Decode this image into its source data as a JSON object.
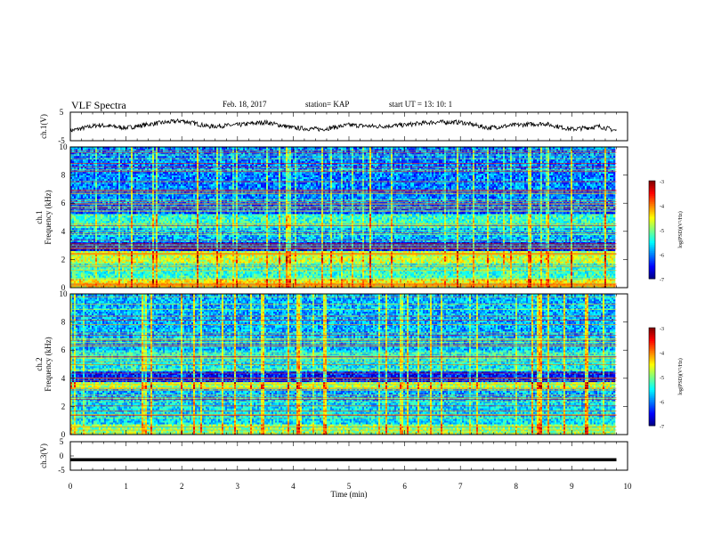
{
  "header": {
    "title": "VLF Spectra",
    "date": "Feb. 18, 2017",
    "station": "station= KAP",
    "start": "start  UT =   13: 10: 1"
  },
  "chart_data": [
    {
      "type": "line",
      "panel": "ch1-waveform",
      "ylabel": "ch.1(V)",
      "ylim": [
        -5,
        5
      ],
      "yticks": [
        5,
        -5
      ],
      "xlim": [
        0,
        10
      ],
      "series": [
        {
          "x": [
            0,
            0.5,
            1,
            1.5,
            2,
            2.5,
            3,
            3.5,
            4,
            4.5,
            5,
            5.5,
            6,
            6.5,
            7,
            7.5,
            8,
            8.5,
            9,
            9.5,
            9.8
          ],
          "values": [
            -1.5,
            0.5,
            -0.5,
            1,
            2,
            0,
            0.5,
            1.5,
            -0.5,
            -1,
            0.5,
            0,
            0.5,
            1.5,
            1.5,
            -0.5,
            0.5,
            1,
            -1,
            0,
            -1.5
          ]
        }
      ]
    },
    {
      "type": "heatmap",
      "panel": "ch1-spectrogram",
      "ylabel": "ch.1\nFrequency (kHz)",
      "ylim": [
        0,
        10
      ],
      "yticks": [
        0,
        2,
        4,
        6,
        8,
        10
      ],
      "xlim": [
        0,
        10
      ],
      "colorbar": {
        "label": "log(PSD)(V²/Hz)",
        "range": [
          -7,
          -3
        ],
        "ticks": [
          -3,
          -4,
          -5,
          -6,
          -7
        ]
      },
      "bands_khz": [
        {
          "range": [
            0,
            0.6
          ],
          "level": -4.5
        },
        {
          "range": [
            0.6,
            1.8
          ],
          "level": -5.3
        },
        {
          "range": [
            1.8,
            2.6
          ],
          "level": -4.7
        },
        {
          "range": [
            2.6,
            3.2
          ],
          "level": -6.5
        },
        {
          "range": [
            3.2,
            4.2
          ],
          "level": -5.8
        },
        {
          "range": [
            4.2,
            5.3
          ],
          "level": -5.3
        },
        {
          "range": [
            5.3,
            6.0
          ],
          "level": -6.2
        },
        {
          "range": [
            6.0,
            10
          ],
          "level": -6.0
        }
      ]
    },
    {
      "type": "heatmap",
      "panel": "ch2-spectrogram",
      "ylabel": "ch.2\nFrequency (kHz)",
      "ylim": [
        0,
        10
      ],
      "yticks": [
        0,
        2,
        4,
        6,
        8,
        10
      ],
      "xlim": [
        0,
        10
      ],
      "colorbar": {
        "label": "log(PSD)(V²/Hz)",
        "range": [
          -7,
          -3
        ],
        "ticks": [
          -3,
          -4,
          -5,
          -6,
          -7
        ]
      },
      "bands_khz": [
        {
          "range": [
            0,
            0.8
          ],
          "level": -5.0
        },
        {
          "range": [
            0.8,
            2.4
          ],
          "level": -5.6
        },
        {
          "range": [
            2.4,
            3.3
          ],
          "level": -5.8
        },
        {
          "range": [
            3.3,
            3.7
          ],
          "level": -4.8
        },
        {
          "range": [
            3.7,
            4.5
          ],
          "level": -6.4
        },
        {
          "range": [
            4.5,
            6.0
          ],
          "level": -5.5
        },
        {
          "range": [
            6.0,
            10
          ],
          "level": -5.8
        }
      ]
    },
    {
      "type": "line",
      "panel": "ch3-waveform",
      "ylabel": "ch.3(V)",
      "ylim": [
        -5,
        5
      ],
      "yticks": [
        5,
        0,
        -5
      ],
      "xlim": [
        0,
        10
      ],
      "xlabel": "Time (min)",
      "xticks": [
        0,
        1,
        2,
        3,
        4,
        5,
        6,
        7,
        8,
        9,
        10
      ],
      "series": [
        {
          "x": [
            0,
            9.8
          ],
          "values": [
            -1.3,
            -1.3
          ]
        }
      ]
    }
  ]
}
